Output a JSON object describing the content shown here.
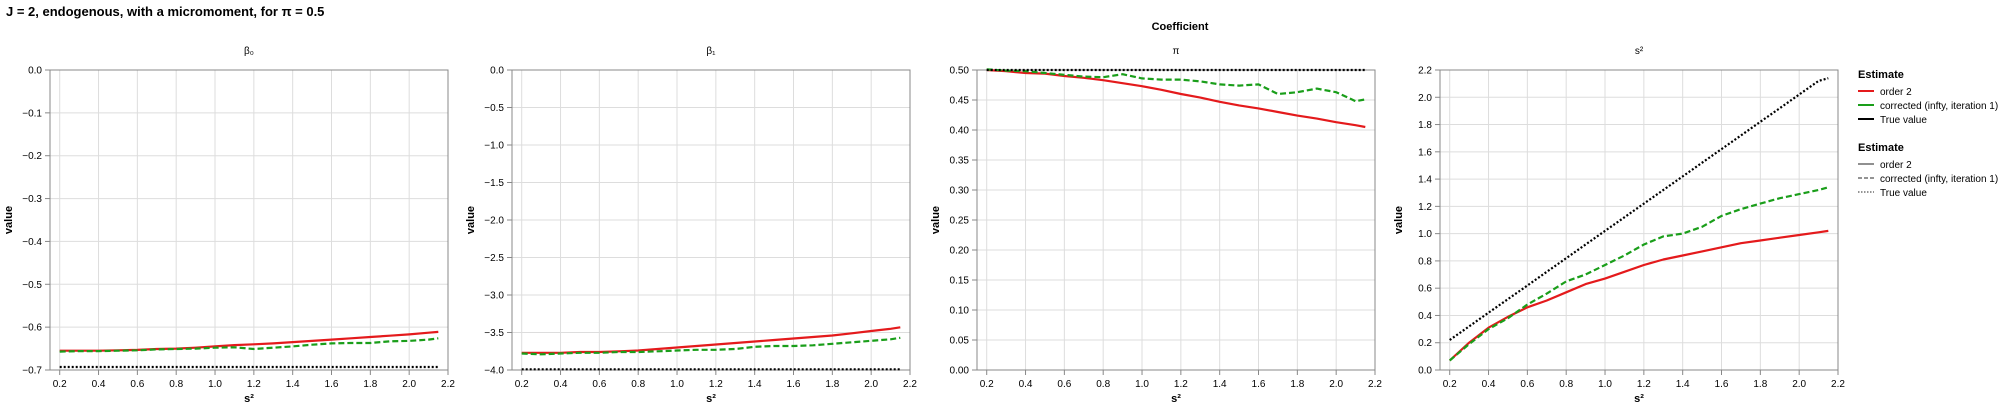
{
  "figure": {
    "suptitle": "J = 2, endogenous, with a micromoment,  for π = 0.5",
    "facet_title": "Coefficient"
  },
  "legend": [
    {
      "title": "Estimate",
      "items": [
        {
          "label": "order 2",
          "color": "#e41a1c",
          "dash": "solid"
        },
        {
          "label": "corrected (infty, iteration 1)",
          "color": "#1a9e1a",
          "dash": "solid"
        },
        {
          "label": "True value",
          "color": "#000000",
          "dash": "solid"
        }
      ]
    },
    {
      "title": "Estimate",
      "items": [
        {
          "label": "order 2",
          "color": "#555555",
          "dash": "solid"
        },
        {
          "label": "corrected (infty, iteration 1)",
          "color": "#555555",
          "dash": "dashed"
        },
        {
          "label": "True value",
          "color": "#555555",
          "dash": "dotted"
        }
      ]
    }
  ],
  "colors": {
    "order2": "#e41a1c",
    "corrected": "#1a9e1a",
    "truth": "#000000",
    "grid": "#dddddd"
  },
  "chart_data": [
    {
      "type": "line",
      "title": "β₀",
      "xlabel": "s²",
      "ylabel": "value",
      "xlim": [
        0.15,
        2.2
      ],
      "ylim": [
        -0.7,
        0.0
      ],
      "xticks": [
        "0.2",
        "0.4",
        "0.6",
        "0.8",
        "1.0",
        "1.2",
        "1.4",
        "1.6",
        "1.8",
        "2.0",
        "2.2"
      ],
      "yticks": [
        "0.0",
        "−0.1",
        "−0.2",
        "−0.3",
        "−0.4",
        "−0.5",
        "−0.6",
        "−0.7"
      ],
      "grid": true,
      "x": [
        0.2,
        0.3,
        0.4,
        0.5,
        0.6,
        0.7,
        0.8,
        0.9,
        1.0,
        1.1,
        1.2,
        1.3,
        1.4,
        1.5,
        1.6,
        1.7,
        1.8,
        1.9,
        2.0,
        2.1,
        2.15
      ],
      "series": [
        {
          "name": "order 2",
          "dash": "solid",
          "values": [
            -0.655,
            -0.655,
            -0.655,
            -0.654,
            -0.653,
            -0.651,
            -0.65,
            -0.648,
            -0.645,
            -0.642,
            -0.64,
            -0.638,
            -0.635,
            -0.632,
            -0.629,
            -0.626,
            -0.623,
            -0.62,
            -0.617,
            -0.613,
            -0.611
          ]
        },
        {
          "name": "corrected (infty, iteration 1)",
          "dash": "dashed",
          "values": [
            -0.657,
            -0.656,
            -0.656,
            -0.655,
            -0.654,
            -0.652,
            -0.651,
            -0.65,
            -0.648,
            -0.647,
            -0.651,
            -0.648,
            -0.645,
            -0.641,
            -0.638,
            -0.637,
            -0.637,
            -0.633,
            -0.632,
            -0.629,
            -0.626
          ]
        },
        {
          "name": "True value",
          "dash": "dotted",
          "values": [
            -0.693,
            -0.693,
            -0.693,
            -0.693,
            -0.693,
            -0.693,
            -0.693,
            -0.693,
            -0.693,
            -0.693,
            -0.693,
            -0.693,
            -0.693,
            -0.693,
            -0.693,
            -0.693,
            -0.693,
            -0.693,
            -0.693,
            -0.693,
            -0.693
          ]
        }
      ]
    },
    {
      "type": "line",
      "title": "β₁",
      "xlabel": "s²",
      "ylabel": "value",
      "xlim": [
        0.15,
        2.2
      ],
      "ylim": [
        -4.0,
        0.0
      ],
      "xticks": [
        "0.2",
        "0.4",
        "0.6",
        "0.8",
        "1.0",
        "1.2",
        "1.4",
        "1.6",
        "1.8",
        "2.0",
        "2.2"
      ],
      "yticks": [
        "0.0",
        "−0.5",
        "−1.0",
        "−1.5",
        "−2.0",
        "−2.5",
        "−3.0",
        "−3.5",
        "−4.0"
      ],
      "grid": true,
      "x": [
        0.2,
        0.3,
        0.4,
        0.5,
        0.6,
        0.7,
        0.8,
        0.9,
        1.0,
        1.1,
        1.2,
        1.3,
        1.4,
        1.5,
        1.6,
        1.7,
        1.8,
        1.9,
        2.0,
        2.1,
        2.15
      ],
      "series": [
        {
          "name": "order 2",
          "dash": "solid",
          "values": [
            -3.77,
            -3.77,
            -3.77,
            -3.76,
            -3.76,
            -3.75,
            -3.74,
            -3.72,
            -3.7,
            -3.68,
            -3.66,
            -3.64,
            -3.62,
            -3.6,
            -3.58,
            -3.56,
            -3.54,
            -3.51,
            -3.48,
            -3.45,
            -3.43
          ]
        },
        {
          "name": "corrected (infty, iteration 1)",
          "dash": "dashed",
          "values": [
            -3.78,
            -3.79,
            -3.78,
            -3.77,
            -3.77,
            -3.76,
            -3.76,
            -3.75,
            -3.74,
            -3.73,
            -3.73,
            -3.72,
            -3.69,
            -3.68,
            -3.68,
            -3.67,
            -3.65,
            -3.63,
            -3.61,
            -3.59,
            -3.57
          ]
        },
        {
          "name": "True value",
          "dash": "dotted",
          "values": [
            -3.99,
            -3.99,
            -3.99,
            -3.99,
            -3.99,
            -3.99,
            -3.99,
            -3.99,
            -3.99,
            -3.99,
            -3.99,
            -3.99,
            -3.99,
            -3.99,
            -3.99,
            -3.99,
            -3.99,
            -3.99,
            -3.99,
            -3.99,
            -3.99
          ]
        }
      ]
    },
    {
      "type": "line",
      "title": "π",
      "xlabel": "s²",
      "ylabel": "value",
      "xlim": [
        0.15,
        2.2
      ],
      "ylim": [
        0.0,
        0.5
      ],
      "xticks": [
        "0.2",
        "0.4",
        "0.6",
        "0.8",
        "1.0",
        "1.2",
        "1.4",
        "1.6",
        "1.8",
        "2.0",
        "2.2"
      ],
      "yticks": [
        "0.50",
        "0.45",
        "0.40",
        "0.35",
        "0.30",
        "0.25",
        "0.20",
        "0.15",
        "0.10",
        "0.05",
        "0.00"
      ],
      "grid": true,
      "x": [
        0.2,
        0.3,
        0.4,
        0.5,
        0.6,
        0.7,
        0.8,
        0.9,
        1.0,
        1.1,
        1.2,
        1.3,
        1.4,
        1.5,
        1.6,
        1.7,
        1.8,
        1.9,
        2.0,
        2.1,
        2.15
      ],
      "series": [
        {
          "name": "order 2",
          "dash": "solid",
          "values": [
            0.5,
            0.498,
            0.495,
            0.494,
            0.49,
            0.487,
            0.483,
            0.478,
            0.473,
            0.467,
            0.46,
            0.454,
            0.447,
            0.441,
            0.436,
            0.43,
            0.424,
            0.419,
            0.413,
            0.408,
            0.405
          ]
        },
        {
          "name": "corrected (infty, iteration 1)",
          "dash": "dashed",
          "values": [
            0.501,
            0.499,
            0.498,
            0.495,
            0.492,
            0.489,
            0.488,
            0.493,
            0.486,
            0.484,
            0.484,
            0.481,
            0.476,
            0.474,
            0.476,
            0.46,
            0.463,
            0.469,
            0.463,
            0.448,
            0.451
          ]
        },
        {
          "name": "True value",
          "dash": "dotted",
          "values": [
            0.5,
            0.5,
            0.5,
            0.5,
            0.5,
            0.5,
            0.5,
            0.5,
            0.5,
            0.5,
            0.5,
            0.5,
            0.5,
            0.5,
            0.5,
            0.5,
            0.5,
            0.5,
            0.5,
            0.5,
            0.5
          ]
        }
      ]
    },
    {
      "type": "line",
      "title": "s²",
      "xlabel": "s²",
      "ylabel": "value",
      "xlim": [
        0.15,
        2.2
      ],
      "ylim": [
        0.0,
        2.2
      ],
      "xticks": [
        "0.2",
        "0.4",
        "0.6",
        "0.8",
        "1.0",
        "1.2",
        "1.4",
        "1.6",
        "1.8",
        "2.0",
        "2.2"
      ],
      "yticks": [
        "2.2",
        "2.0",
        "1.8",
        "1.6",
        "1.4",
        "1.2",
        "1.0",
        "0.8",
        "0.6",
        "0.4",
        "0.2",
        "0.0"
      ],
      "grid": true,
      "x": [
        0.2,
        0.3,
        0.4,
        0.5,
        0.6,
        0.7,
        0.8,
        0.9,
        1.0,
        1.1,
        1.2,
        1.3,
        1.4,
        1.5,
        1.6,
        1.7,
        1.8,
        1.9,
        2.0,
        2.1,
        2.15
      ],
      "series": [
        {
          "name": "order 2",
          "dash": "solid",
          "values": [
            0.07,
            0.2,
            0.31,
            0.39,
            0.46,
            0.51,
            0.57,
            0.63,
            0.67,
            0.72,
            0.77,
            0.81,
            0.84,
            0.87,
            0.9,
            0.93,
            0.95,
            0.97,
            0.99,
            1.01,
            1.02
          ]
        },
        {
          "name": "corrected (infty, iteration 1)",
          "dash": "dashed",
          "values": [
            0.07,
            0.19,
            0.3,
            0.38,
            0.48,
            0.56,
            0.65,
            0.7,
            0.77,
            0.84,
            0.92,
            0.98,
            1.0,
            1.05,
            1.13,
            1.18,
            1.22,
            1.26,
            1.29,
            1.32,
            1.34
          ]
        },
        {
          "name": "True value",
          "dash": "dotted",
          "values": [
            0.22,
            0.32,
            0.42,
            0.52,
            0.62,
            0.72,
            0.82,
            0.92,
            1.02,
            1.12,
            1.22,
            1.32,
            1.42,
            1.52,
            1.62,
            1.72,
            1.82,
            1.92,
            2.02,
            2.12,
            2.14
          ]
        }
      ]
    }
  ]
}
